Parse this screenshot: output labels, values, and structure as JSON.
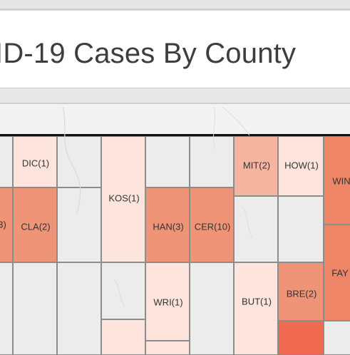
{
  "title": "ID-19 Cases By County",
  "colors": {
    "empty": "#ececec",
    "light": "#fde4dc",
    "medium": "#f6b5a1",
    "dark": "#f09478",
    "darker": "#ee8567",
    "darkest": "#f06a52"
  },
  "counties": [
    {
      "label": "DIC(1)"
    },
    {
      "label": "KOS(1)"
    },
    {
      "label": "MIT(2)"
    },
    {
      "label": "HOW(1)"
    },
    {
      "label": "WIN"
    },
    {
      "label": "3)"
    },
    {
      "label": "CLA(2)"
    },
    {
      "label": "HAN(3)"
    },
    {
      "label": "CER(10)"
    },
    {
      "label": "FAY"
    },
    {
      "label": "WRI(1)"
    },
    {
      "label": "BUT(1)"
    },
    {
      "label": "BRE(2)"
    }
  ]
}
